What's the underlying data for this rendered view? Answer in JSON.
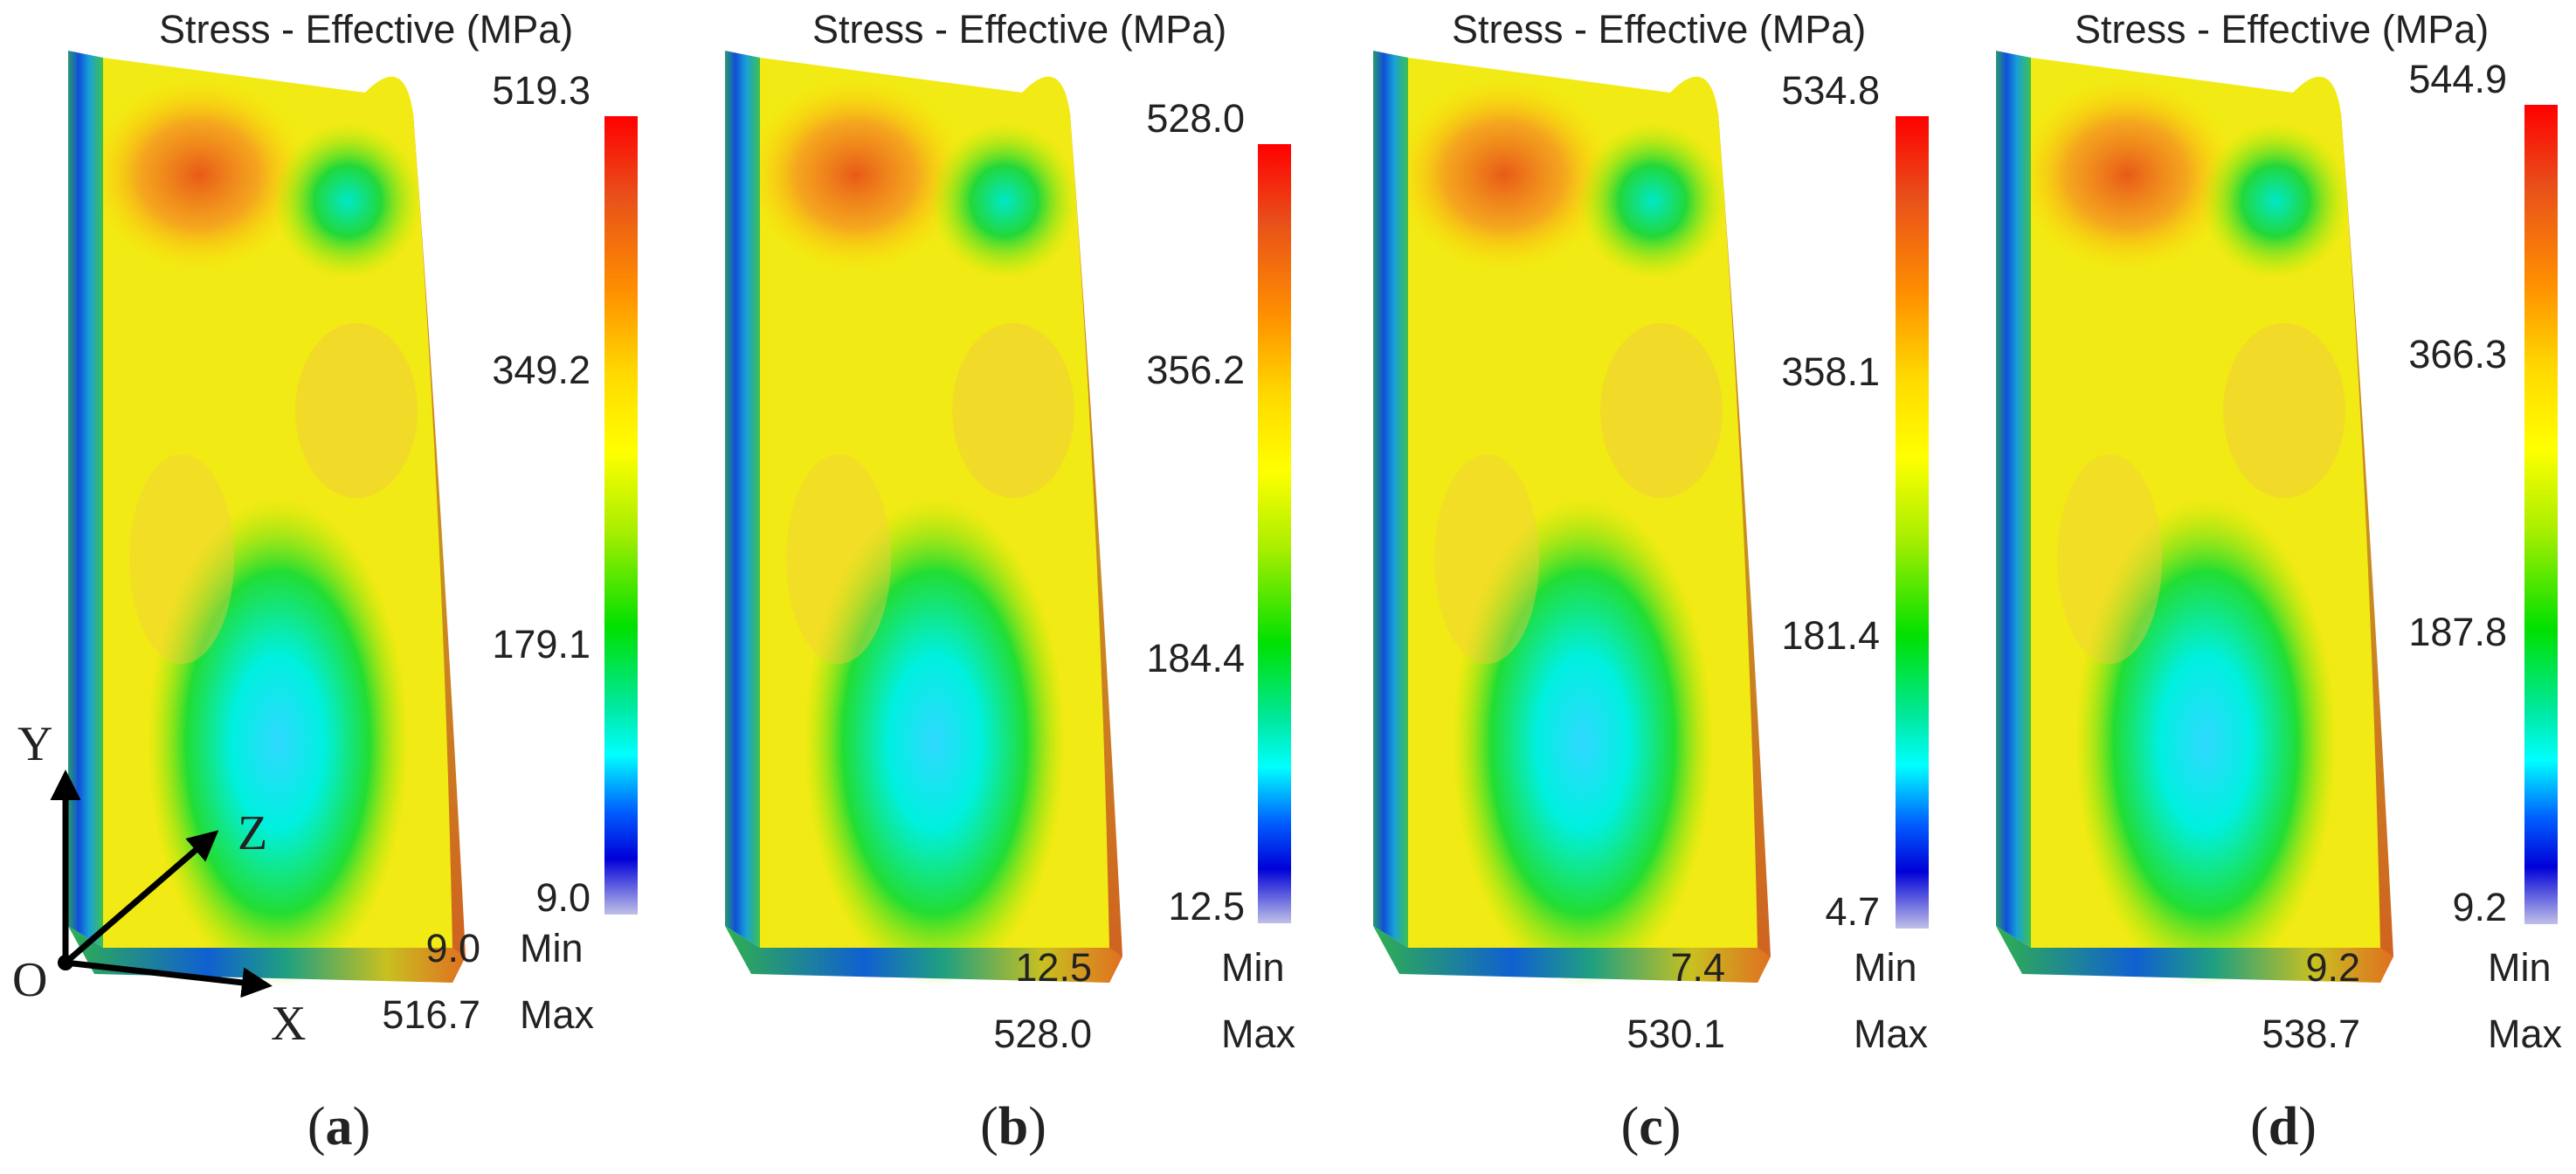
{
  "legend_title": "Stress - Effective (MPa)",
  "min_label": "Min",
  "max_label": "Max",
  "axes": {
    "x": "X",
    "y": "Y",
    "z": "Z",
    "origin": "O"
  },
  "panels": [
    {
      "caption": "a",
      "ticks": [
        "519.3",
        "349.2",
        "179.1",
        "9.0"
      ],
      "min_value": "9.0",
      "max_value": "516.7"
    },
    {
      "caption": "b",
      "ticks": [
        "528.0",
        "356.2",
        "184.4",
        "12.5"
      ],
      "min_value": "12.5",
      "max_value": "528.0"
    },
    {
      "caption": "c",
      "ticks": [
        "534.8",
        "358.1",
        "181.4",
        "4.7"
      ],
      "min_value": "7.4",
      "max_value": "530.1"
    },
    {
      "caption": "d",
      "ticks": [
        "544.9",
        "366.3",
        "187.8",
        "9.2"
      ],
      "min_value": "9.2",
      "max_value": "538.7"
    }
  ],
  "colors": {
    "high": "#ff0000",
    "mid": "#ffff00",
    "low": "#0000d8",
    "background": "#ffffff"
  }
}
